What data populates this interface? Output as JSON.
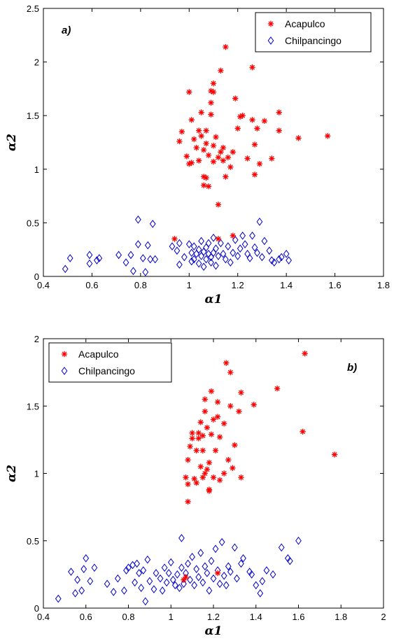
{
  "colors": {
    "acapulco": "#ff0000",
    "chilpancingo": "#0000cc",
    "axis": "#000000"
  },
  "chart_data": [
    {
      "type": "scatter",
      "panel_label": "a)",
      "xlabel": "α1",
      "ylabel": "α2",
      "xlim": [
        0.4,
        1.8
      ],
      "ylim": [
        0,
        2.5
      ],
      "xticks": [
        "0.4",
        "0.6",
        "0.8",
        "1",
        "1.2",
        "1.4",
        "1.6",
        "1.8"
      ],
      "yticks": [
        "0",
        "0.5",
        "1",
        "1.5",
        "2",
        "2.5"
      ],
      "legend_position": "top-right",
      "series": [
        {
          "name": "Acapulco",
          "marker": "star",
          "points": [
            [
              0.96,
              1.26
            ],
            [
              0.97,
              1.35
            ],
            [
              0.99,
              1.12
            ],
            [
              1.0,
              1.05
            ],
            [
              1.01,
              1.06
            ],
            [
              1.01,
              1.46
            ],
            [
              1.0,
              1.72
            ],
            [
              1.02,
              1.28
            ],
            [
              1.03,
              1.2
            ],
            [
              1.04,
              1.08
            ],
            [
              1.04,
              1.36
            ],
            [
              1.05,
              1.31
            ],
            [
              1.05,
              1.53
            ],
            [
              1.06,
              1.18
            ],
            [
              1.06,
              0.93
            ],
            [
              1.06,
              0.85
            ],
            [
              1.07,
              0.92
            ],
            [
              1.07,
              1.24
            ],
            [
              1.07,
              1.36
            ],
            [
              1.08,
              0.84
            ],
            [
              1.08,
              1.13
            ],
            [
              1.09,
              1.51
            ],
            [
              1.09,
              1.62
            ],
            [
              1.09,
              1.73
            ],
            [
              1.1,
              1.8
            ],
            [
              1.1,
              1.72
            ],
            [
              1.1,
              1.22
            ],
            [
              1.1,
              1.07
            ],
            [
              1.11,
              1.3
            ],
            [
              1.12,
              0.67
            ],
            [
              1.12,
              1.11
            ],
            [
              1.13,
              1.92
            ],
            [
              1.13,
              1.16
            ],
            [
              1.14,
              1.08
            ],
            [
              1.14,
              1.2
            ],
            [
              1.15,
              2.14
            ],
            [
              1.15,
              0.93
            ],
            [
              1.16,
              1.11
            ],
            [
              1.17,
              1.02
            ],
            [
              1.18,
              1.16
            ],
            [
              1.19,
              1.66
            ],
            [
              1.2,
              1.38
            ],
            [
              1.21,
              1.49
            ],
            [
              1.22,
              1.5
            ],
            [
              1.24,
              1.1
            ],
            [
              1.26,
              1.95
            ],
            [
              1.26,
              1.46
            ],
            [
              1.27,
              0.95
            ],
            [
              1.27,
              1.23
            ],
            [
              1.28,
              1.38
            ],
            [
              1.29,
              1.05
            ],
            [
              1.31,
              1.45
            ],
            [
              1.34,
              1.1
            ],
            [
              1.37,
              1.53
            ],
            [
              1.37,
              1.36
            ],
            [
              1.45,
              1.29
            ],
            [
              1.57,
              1.31
            ],
            [
              0.94,
              0.35
            ],
            [
              1.12,
              0.35
            ],
            [
              1.18,
              0.38
            ]
          ]
        },
        {
          "name": "Chilpancingo",
          "marker": "diamond",
          "points": [
            [
              0.49,
              0.07
            ],
            [
              0.51,
              0.17
            ],
            [
              0.59,
              0.12
            ],
            [
              0.59,
              0.2
            ],
            [
              0.62,
              0.15
            ],
            [
              0.63,
              0.17
            ],
            [
              0.71,
              0.2
            ],
            [
              0.74,
              0.13
            ],
            [
              0.76,
              0.2
            ],
            [
              0.77,
              0.05
            ],
            [
              0.79,
              0.3
            ],
            [
              0.79,
              0.53
            ],
            [
              0.81,
              0.17
            ],
            [
              0.82,
              0.04
            ],
            [
              0.83,
              0.29
            ],
            [
              0.84,
              0.16
            ],
            [
              0.85,
              0.49
            ],
            [
              0.86,
              0.16
            ],
            [
              0.93,
              0.28
            ],
            [
              0.95,
              0.24
            ],
            [
              0.96,
              0.31
            ],
            [
              0.96,
              0.11
            ],
            [
              0.98,
              0.18
            ],
            [
              1.0,
              0.3
            ],
            [
              1.01,
              0.14
            ],
            [
              1.01,
              0.22
            ],
            [
              1.02,
              0.28
            ],
            [
              1.02,
              0.16
            ],
            [
              1.03,
              0.21
            ],
            [
              1.04,
              0.12
            ],
            [
              1.04,
              0.25
            ],
            [
              1.05,
              0.33
            ],
            [
              1.05,
              0.19
            ],
            [
              1.06,
              0.23
            ],
            [
              1.06,
              0.09
            ],
            [
              1.07,
              0.27
            ],
            [
              1.07,
              0.16
            ],
            [
              1.08,
              0.21
            ],
            [
              1.08,
              0.31
            ],
            [
              1.09,
              0.18
            ],
            [
              1.09,
              0.13
            ],
            [
              1.1,
              0.36
            ],
            [
              1.1,
              0.22
            ],
            [
              1.11,
              0.1
            ],
            [
              1.11,
              0.26
            ],
            [
              1.12,
              0.19
            ],
            [
              1.13,
              0.31
            ],
            [
              1.14,
              0.21
            ],
            [
              1.15,
              0.16
            ],
            [
              1.16,
              0.28
            ],
            [
              1.17,
              0.13
            ],
            [
              1.18,
              0.22
            ],
            [
              1.19,
              0.34
            ],
            [
              1.2,
              0.19
            ],
            [
              1.21,
              0.26
            ],
            [
              1.22,
              0.38
            ],
            [
              1.23,
              0.3
            ],
            [
              1.24,
              0.21
            ],
            [
              1.25,
              0.17
            ],
            [
              1.26,
              0.38
            ],
            [
              1.27,
              0.27
            ],
            [
              1.28,
              0.22
            ],
            [
              1.29,
              0.51
            ],
            [
              1.3,
              0.18
            ],
            [
              1.31,
              0.33
            ],
            [
              1.33,
              0.24
            ],
            [
              1.34,
              0.15
            ],
            [
              1.35,
              0.13
            ],
            [
              1.37,
              0.16
            ],
            [
              1.38,
              0.18
            ],
            [
              1.4,
              0.21
            ],
            [
              1.41,
              0.15
            ]
          ]
        }
      ]
    },
    {
      "type": "scatter",
      "panel_label": "b)",
      "xlabel": "α1",
      "ylabel": "α2",
      "xlim": [
        0.4,
        2
      ],
      "ylim": [
        0,
        2
      ],
      "xticks": [
        "0.4",
        "0.6",
        "0.8",
        "1",
        "1.2",
        "1.4",
        "1.6",
        "1.8",
        "2"
      ],
      "yticks": [
        "0",
        "0.5",
        "1",
        "1.5",
        "2"
      ],
      "legend_position": "top-left",
      "series": [
        {
          "name": "Acapulco",
          "marker": "star",
          "points": [
            [
              1.07,
              0.97
            ],
            [
              1.08,
              0.92
            ],
            [
              1.08,
              1.1
            ],
            [
              1.08,
              0.79
            ],
            [
              1.09,
              1.2
            ],
            [
              1.1,
              1.3
            ],
            [
              1.1,
              1.26
            ],
            [
              1.11,
              0.96
            ],
            [
              1.12,
              0.93
            ],
            [
              1.12,
              1.17
            ],
            [
              1.13,
              1.26
            ],
            [
              1.13,
              1.3
            ],
            [
              1.14,
              1.38
            ],
            [
              1.14,
              1.05
            ],
            [
              1.15,
              0.97
            ],
            [
              1.15,
              1.17
            ],
            [
              1.15,
              1.28
            ],
            [
              1.16,
              1.46
            ],
            [
              1.16,
              1.55
            ],
            [
              1.16,
              1.0
            ],
            [
              1.17,
              1.34
            ],
            [
              1.17,
              1.03
            ],
            [
              1.18,
              0.88
            ],
            [
              1.18,
              1.08
            ],
            [
              1.18,
              0.87
            ],
            [
              1.19,
              1.61
            ],
            [
              1.19,
              1.29
            ],
            [
              1.2,
              1.4
            ],
            [
              1.2,
              0.97
            ],
            [
              1.21,
              1.17
            ],
            [
              1.22,
              1.53
            ],
            [
              1.22,
              1.42
            ],
            [
              1.23,
              1.27
            ],
            [
              1.23,
              0.95
            ],
            [
              1.25,
              1.0
            ],
            [
              1.25,
              1.37
            ],
            [
              1.26,
              1.82
            ],
            [
              1.27,
              1.1
            ],
            [
              1.28,
              1.75
            ],
            [
              1.28,
              1.5
            ],
            [
              1.29,
              1.04
            ],
            [
              1.3,
              1.21
            ],
            [
              1.32,
              1.46
            ],
            [
              1.33,
              1.6
            ],
            [
              1.33,
              0.97
            ],
            [
              1.39,
              1.51
            ],
            [
              1.5,
              1.63
            ],
            [
              1.62,
              1.31
            ],
            [
              1.63,
              1.89
            ],
            [
              1.77,
              1.14
            ],
            [
              1.06,
              0.21
            ],
            [
              1.07,
              0.23
            ],
            [
              1.22,
              0.26
            ]
          ]
        },
        {
          "name": "Chilpancingo",
          "marker": "diamond",
          "points": [
            [
              0.47,
              0.07
            ],
            [
              0.53,
              0.27
            ],
            [
              0.55,
              0.11
            ],
            [
              0.56,
              0.21
            ],
            [
              0.58,
              0.13
            ],
            [
              0.59,
              0.29
            ],
            [
              0.6,
              0.37
            ],
            [
              0.62,
              0.2
            ],
            [
              0.64,
              0.3
            ],
            [
              0.7,
              0.18
            ],
            [
              0.73,
              0.12
            ],
            [
              0.75,
              0.22
            ],
            [
              0.78,
              0.13
            ],
            [
              0.79,
              0.28
            ],
            [
              0.8,
              0.3
            ],
            [
              0.82,
              0.32
            ],
            [
              0.83,
              0.19
            ],
            [
              0.84,
              0.33
            ],
            [
              0.85,
              0.26
            ],
            [
              0.86,
              0.15
            ],
            [
              0.87,
              0.28
            ],
            [
              0.88,
              0.05
            ],
            [
              0.89,
              0.36
            ],
            [
              0.9,
              0.2
            ],
            [
              0.92,
              0.14
            ],
            [
              0.93,
              0.26
            ],
            [
              0.95,
              0.22
            ],
            [
              0.96,
              0.13
            ],
            [
              0.97,
              0.3
            ],
            [
              0.98,
              0.19
            ],
            [
              0.99,
              0.26
            ],
            [
              1.0,
              0.34
            ],
            [
              1.01,
              0.21
            ],
            [
              1.02,
              0.17
            ],
            [
              1.03,
              0.25
            ],
            [
              1.04,
              0.15
            ],
            [
              1.05,
              0.52
            ],
            [
              1.05,
              0.3
            ],
            [
              1.06,
              0.18
            ],
            [
              1.07,
              0.26
            ],
            [
              1.08,
              0.33
            ],
            [
              1.09,
              0.21
            ],
            [
              1.1,
              0.38
            ],
            [
              1.11,
              0.17
            ],
            [
              1.12,
              0.29
            ],
            [
              1.13,
              0.23
            ],
            [
              1.14,
              0.41
            ],
            [
              1.15,
              0.19
            ],
            [
              1.16,
              0.31
            ],
            [
              1.17,
              0.26
            ],
            [
              1.18,
              0.13
            ],
            [
              1.19,
              0.35
            ],
            [
              1.2,
              0.22
            ],
            [
              1.21,
              0.44
            ],
            [
              1.22,
              0.28
            ],
            [
              1.23,
              0.18
            ],
            [
              1.24,
              0.49
            ],
            [
              1.25,
              0.24
            ],
            [
              1.26,
              0.17
            ],
            [
              1.27,
              0.31
            ],
            [
              1.28,
              0.27
            ],
            [
              1.3,
              0.45
            ],
            [
              1.31,
              0.22
            ],
            [
              1.33,
              0.33
            ],
            [
              1.34,
              0.37
            ],
            [
              1.37,
              0.27
            ],
            [
              1.38,
              0.25
            ],
            [
              1.4,
              0.17
            ],
            [
              1.42,
              0.11
            ],
            [
              1.43,
              0.2
            ],
            [
              1.45,
              0.28
            ],
            [
              1.48,
              0.25
            ],
            [
              1.52,
              0.45
            ],
            [
              1.55,
              0.37
            ],
            [
              1.56,
              0.35
            ],
            [
              1.6,
              0.5
            ]
          ]
        }
      ]
    }
  ]
}
